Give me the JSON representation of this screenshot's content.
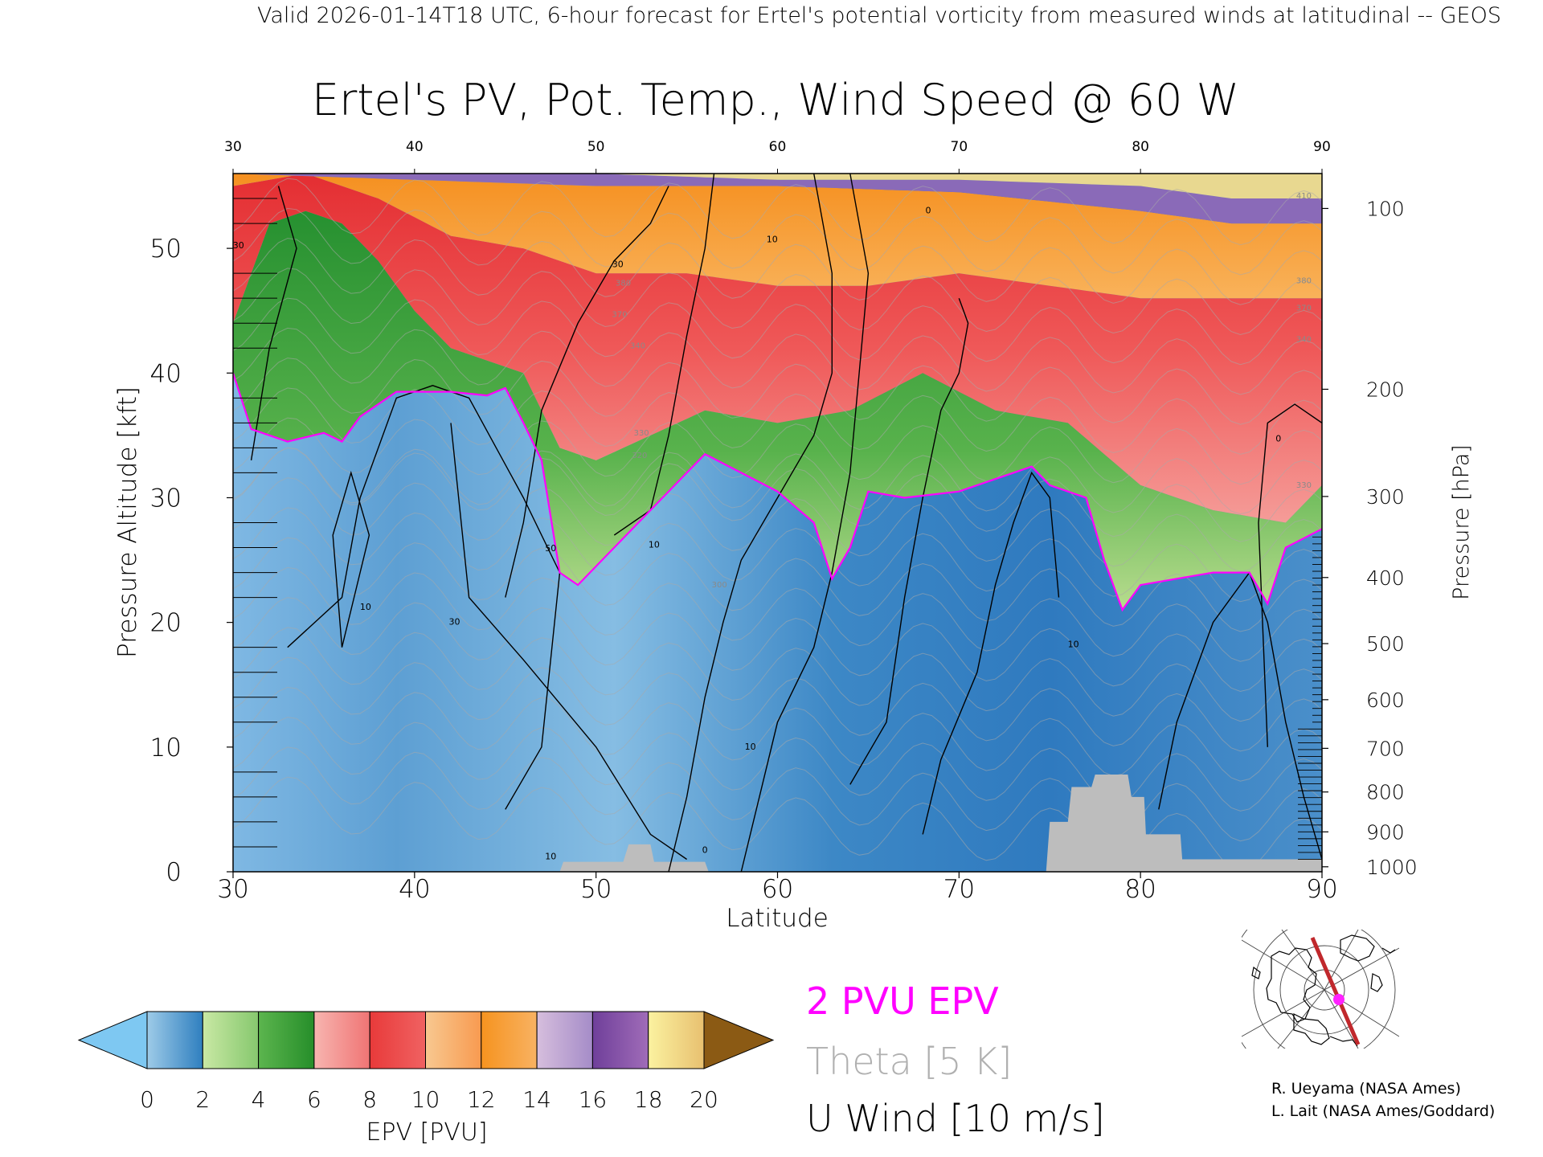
{
  "header": {
    "caption": "Valid 2026-01-14T18 UTC, 6-hour forecast for Ertel's potential vorticity from measured winds at latitudinal -- GEOS"
  },
  "chart_data": {
    "type": "heatmap",
    "title": "Ertel's PV, Pot. Temp., Wind Speed @ 60 W",
    "xlabel": "Latitude",
    "ylabel": "Pressure Altitude [kft]",
    "y2label": "Pressure [hPa]",
    "xlim": [
      30,
      90
    ],
    "ylim": [
      0,
      56
    ],
    "x_ticks": [
      30,
      40,
      50,
      60,
      70,
      80,
      90
    ],
    "x_tick_labels": [
      "30",
      "40",
      "50",
      "60",
      "70",
      "80",
      "90"
    ],
    "y_ticks": [
      0,
      10,
      20,
      30,
      40,
      50
    ],
    "y_tick_labels": [
      "0",
      "10",
      "20",
      "30",
      "40",
      "50"
    ],
    "pressure_ticks": [
      {
        "label": "100",
        "kft": 53.2
      },
      {
        "label": "200",
        "kft": 38.7
      },
      {
        "label": "300",
        "kft": 30.1
      },
      {
        "label": "400",
        "kft": 23.6
      },
      {
        "label": "500",
        "kft": 18.3
      },
      {
        "label": "600",
        "kft": 13.8
      },
      {
        "label": "700",
        "kft": 9.9
      },
      {
        "label": "800",
        "kft": 6.4
      },
      {
        "label": "900",
        "kft": 3.2
      },
      {
        "label": "1000",
        "kft": 0.4
      }
    ],
    "tropopause_2pvu_kft": [
      {
        "lat": 30,
        "kft": 40.0
      },
      {
        "lat": 31,
        "kft": 35.5
      },
      {
        "lat": 33,
        "kft": 34.5
      },
      {
        "lat": 35,
        "kft": 35.2
      },
      {
        "lat": 36,
        "kft": 34.5
      },
      {
        "lat": 37,
        "kft": 36.5
      },
      {
        "lat": 39,
        "kft": 38.5
      },
      {
        "lat": 42,
        "kft": 38.5
      },
      {
        "lat": 44,
        "kft": 38.2
      },
      {
        "lat": 45,
        "kft": 38.8
      },
      {
        "lat": 46,
        "kft": 36.0
      },
      {
        "lat": 47,
        "kft": 33.0
      },
      {
        "lat": 48,
        "kft": 24.0
      },
      {
        "lat": 49,
        "kft": 23.0
      },
      {
        "lat": 51,
        "kft": 26.0
      },
      {
        "lat": 53,
        "kft": 29.0
      },
      {
        "lat": 55,
        "kft": 32.0
      },
      {
        "lat": 56,
        "kft": 33.5
      },
      {
        "lat": 58,
        "kft": 32.0
      },
      {
        "lat": 60,
        "kft": 30.5
      },
      {
        "lat": 62,
        "kft": 28.0
      },
      {
        "lat": 63,
        "kft": 23.5
      },
      {
        "lat": 64,
        "kft": 26.0
      },
      {
        "lat": 65,
        "kft": 30.5
      },
      {
        "lat": 67,
        "kft": 30.0
      },
      {
        "lat": 70,
        "kft": 30.5
      },
      {
        "lat": 72,
        "kft": 31.5
      },
      {
        "lat": 74,
        "kft": 32.5
      },
      {
        "lat": 75,
        "kft": 31.0
      },
      {
        "lat": 77,
        "kft": 30.0
      },
      {
        "lat": 78,
        "kft": 25.0
      },
      {
        "lat": 79,
        "kft": 21.0
      },
      {
        "lat": 80,
        "kft": 23.0
      },
      {
        "lat": 82,
        "kft": 23.5
      },
      {
        "lat": 84,
        "kft": 24.0
      },
      {
        "lat": 86,
        "kft": 24.0
      },
      {
        "lat": 87,
        "kft": 21.5
      },
      {
        "lat": 88,
        "kft": 26.0
      },
      {
        "lat": 90,
        "kft": 27.5
      }
    ],
    "upper_bands": {
      "green_top_kft": [
        [
          30,
          44
        ],
        [
          32,
          52
        ],
        [
          34,
          53
        ],
        [
          36,
          52
        ],
        [
          38,
          49
        ],
        [
          40,
          45
        ],
        [
          42,
          42
        ],
        [
          44,
          41
        ],
        [
          46,
          40
        ],
        [
          48,
          34
        ],
        [
          50,
          33
        ],
        [
          53,
          35
        ],
        [
          56,
          37
        ],
        [
          60,
          36
        ],
        [
          64,
          37
        ],
        [
          68,
          40
        ],
        [
          72,
          37
        ],
        [
          76,
          36
        ],
        [
          80,
          31
        ],
        [
          84,
          29
        ],
        [
          88,
          28
        ],
        [
          90,
          31
        ]
      ],
      "red_top_kft": [
        [
          30,
          55
        ],
        [
          34,
          56
        ],
        [
          38,
          54
        ],
        [
          42,
          51
        ],
        [
          46,
          50
        ],
        [
          50,
          48
        ],
        [
          55,
          48
        ],
        [
          60,
          47
        ],
        [
          65,
          47
        ],
        [
          70,
          48
        ],
        [
          75,
          47
        ],
        [
          80,
          46
        ],
        [
          85,
          46
        ],
        [
          90,
          46
        ]
      ],
      "orange_top_kft": [
        [
          30,
          56
        ],
        [
          40,
          55.5
        ],
        [
          50,
          55
        ],
        [
          60,
          55
        ],
        [
          70,
          54.5
        ],
        [
          80,
          53
        ],
        [
          85,
          52
        ],
        [
          90,
          52
        ]
      ],
      "purple_top_kft": [
        [
          30,
          56
        ],
        [
          50,
          56
        ],
        [
          60,
          55.5
        ],
        [
          70,
          55.5
        ],
        [
          80,
          55
        ],
        [
          85,
          54
        ],
        [
          90,
          54
        ]
      ]
    },
    "terrain_kft": [
      [
        30,
        0
      ],
      [
        48,
        0
      ],
      [
        48.2,
        0.8
      ],
      [
        51.5,
        0.8
      ],
      [
        51.8,
        2.2
      ],
      [
        53,
        2.2
      ],
      [
        53.2,
        0.8
      ],
      [
        56,
        0.8
      ],
      [
        56.2,
        0
      ],
      [
        74.8,
        0
      ],
      [
        75.0,
        4
      ],
      [
        76,
        4
      ],
      [
        76.2,
        6.8
      ],
      [
        77.3,
        6.8
      ],
      [
        77.5,
        7.8
      ],
      [
        79.3,
        7.8
      ],
      [
        79.5,
        6.0
      ],
      [
        80.2,
        6.0
      ],
      [
        80.3,
        3.0
      ],
      [
        82.2,
        3.0
      ],
      [
        82.3,
        1.0
      ],
      [
        88,
        1.0
      ],
      [
        90,
        1.0
      ],
      [
        90,
        0
      ]
    ],
    "u_wind_contours_10ms": [
      [
        [
          31,
          33
        ],
        [
          32,
          42
        ],
        [
          33.5,
          50
        ],
        [
          32.5,
          55
        ]
      ],
      [
        [
          33,
          18
        ],
        [
          36,
          22
        ],
        [
          37,
          30
        ],
        [
          39,
          38
        ],
        [
          41,
          39
        ],
        [
          43,
          38
        ],
        [
          46,
          30
        ],
        [
          48,
          24
        ],
        [
          47,
          10
        ],
        [
          45,
          5
        ]
      ],
      [
        [
          36,
          18
        ],
        [
          37.5,
          27
        ],
        [
          36.5,
          32
        ],
        [
          35.5,
          27
        ],
        [
          36,
          18
        ]
      ],
      [
        [
          42,
          36
        ],
        [
          43,
          22
        ],
        [
          46,
          17
        ],
        [
          50,
          10
        ],
        [
          53,
          3
        ],
        [
          55,
          1
        ]
      ],
      [
        [
          45,
          22
        ],
        [
          46,
          28
        ],
        [
          47,
          37
        ],
        [
          49,
          44
        ],
        [
          51,
          49
        ],
        [
          53,
          52
        ],
        [
          54,
          55
        ]
      ],
      [
        [
          51,
          27
        ],
        [
          53,
          29
        ],
        [
          54,
          35
        ],
        [
          55,
          43
        ],
        [
          56,
          50
        ],
        [
          56.5,
          56
        ]
      ],
      [
        [
          54,
          0
        ],
        [
          55,
          6
        ],
        [
          56,
          14
        ],
        [
          57,
          20
        ],
        [
          58,
          25
        ],
        [
          60,
          30
        ],
        [
          62,
          35
        ],
        [
          63,
          40
        ],
        [
          63,
          48
        ],
        [
          62,
          56
        ]
      ],
      [
        [
          58,
          0
        ],
        [
          59,
          6
        ],
        [
          60,
          12
        ],
        [
          62,
          18
        ],
        [
          63,
          24
        ],
        [
          64,
          32
        ],
        [
          64.5,
          40
        ],
        [
          65,
          48
        ],
        [
          64,
          56
        ]
      ],
      [
        [
          64,
          7
        ],
        [
          66,
          12
        ],
        [
          67,
          22
        ],
        [
          68,
          30
        ],
        [
          69,
          37
        ],
        [
          70,
          40
        ],
        [
          70.5,
          44
        ],
        [
          70,
          46
        ]
      ],
      [
        [
          68,
          3
        ],
        [
          69,
          9
        ],
        [
          71,
          16
        ],
        [
          72,
          23
        ],
        [
          73,
          28
        ],
        [
          74,
          32
        ],
        [
          75,
          30
        ],
        [
          75.5,
          22
        ]
      ],
      [
        [
          81,
          5
        ],
        [
          82,
          12
        ],
        [
          84,
          20
        ],
        [
          86,
          24
        ],
        [
          87,
          20
        ],
        [
          88,
          12
        ],
        [
          89,
          6
        ],
        [
          90,
          1
        ]
      ],
      [
        [
          87,
          10
        ],
        [
          86.5,
          28
        ],
        [
          87,
          36
        ],
        [
          88.5,
          37.5
        ],
        [
          90,
          36
        ]
      ]
    ],
    "contour_labels": [
      {
        "text": "30",
        "lat": 30.3,
        "kft": 50.0
      },
      {
        "text": "10",
        "lat": 37.3,
        "kft": 21.0
      },
      {
        "text": "30",
        "lat": 42.2,
        "kft": 19.8
      },
      {
        "text": "50",
        "lat": 47.5,
        "kft": 25.7
      },
      {
        "text": "10",
        "lat": 53.2,
        "kft": 26.0
      },
      {
        "text": "30",
        "lat": 51.2,
        "kft": 48.5
      },
      {
        "text": "10",
        "lat": 59.7,
        "kft": 50.5
      },
      {
        "text": "10",
        "lat": 58.5,
        "kft": 9.8
      },
      {
        "text": "10",
        "lat": 76.3,
        "kft": 18.0
      },
      {
        "text": "10",
        "lat": 47.5,
        "kft": 1.0
      },
      {
        "text": "0",
        "lat": 56,
        "kft": 1.5
      },
      {
        "text": "0",
        "lat": 87.6,
        "kft": 34.5
      },
      {
        "text": "0",
        "lat": 68.3,
        "kft": 52.8
      }
    ],
    "theta_labels": [
      {
        "text": "380",
        "lat": 51.5,
        "kft": 47.0
      },
      {
        "text": "370",
        "lat": 51.3,
        "kft": 44.5
      },
      {
        "text": "340",
        "lat": 52.3,
        "kft": 42.0
      },
      {
        "text": "330",
        "lat": 52.5,
        "kft": 35.0
      },
      {
        "text": "320",
        "lat": 52.4,
        "kft": 33.2
      },
      {
        "text": "300",
        "lat": 56.8,
        "kft": 22.8
      },
      {
        "text": "410",
        "lat": 89.0,
        "kft": 54.0
      },
      {
        "text": "380",
        "lat": 89.0,
        "kft": 47.2
      },
      {
        "text": "370",
        "lat": 89.0,
        "kft": 45.0
      },
      {
        "text": "340",
        "lat": 89.0,
        "kft": 42.5
      },
      {
        "text": "330",
        "lat": 89.0,
        "kft": 30.8
      }
    ],
    "colorbar": {
      "label": "EPV [PVU]",
      "min": 0,
      "max": 20,
      "tick_labels": [
        "0",
        "2",
        "4",
        "6",
        "8",
        "10",
        "12",
        "14",
        "16",
        "18",
        "20"
      ],
      "under_color": "#7ec8f2",
      "over_color": "#8b5a14",
      "segments": [
        {
          "from": 0,
          "to": 2,
          "colors": [
            "#9ecbe8",
            "#2f7fbf"
          ]
        },
        {
          "from": 2,
          "to": 4,
          "colors": [
            "#c9e8a4",
            "#86c86e"
          ]
        },
        {
          "from": 4,
          "to": 6,
          "colors": [
            "#5cb54e",
            "#268e2a"
          ]
        },
        {
          "from": 6,
          "to": 8,
          "colors": [
            "#f7b5b0",
            "#f07474"
          ]
        },
        {
          "from": 8,
          "to": 10,
          "colors": [
            "#e83a3a",
            "#f06262"
          ]
        },
        {
          "from": 10,
          "to": 12,
          "colors": [
            "#f8c890",
            "#f89a50"
          ]
        },
        {
          "from": 12,
          "to": 14,
          "colors": [
            "#f6931f",
            "#f8b262"
          ]
        },
        {
          "from": 14,
          "to": 16,
          "colors": [
            "#d6bedd",
            "#a58cc8"
          ]
        },
        {
          "from": 16,
          "to": 18,
          "colors": [
            "#6f3f9a",
            "#a06cb8"
          ]
        },
        {
          "from": 18,
          "to": 20,
          "colors": [
            "#fbf2a0",
            "#e8c070"
          ]
        }
      ]
    },
    "legend": {
      "pvu_line": "2 PVU EPV",
      "theta": "Theta [5 K]",
      "wind": "U Wind [10 m/s]",
      "pvu_color": "#ff00ff",
      "theta_color": "#b0b0b0",
      "wind_color": "#000000"
    },
    "inset_map": {
      "name": "cross-section locator map",
      "track_color": "#c0282c",
      "marker_color": "#ff22ff"
    },
    "colors": {
      "strat_blue_dark": "#2f7dbf",
      "strat_blue_light": "#8fc0e4",
      "green": "#4cab48",
      "red": "#ec4a4a",
      "orange": "#f79a3a",
      "purple": "#8a6ab8",
      "terrain": "#bdbdbd"
    }
  },
  "credits": {
    "line1": "R. Ueyama (NASA Ames)",
    "line2": "L. Lait (NASA Ames/Goddard)"
  }
}
